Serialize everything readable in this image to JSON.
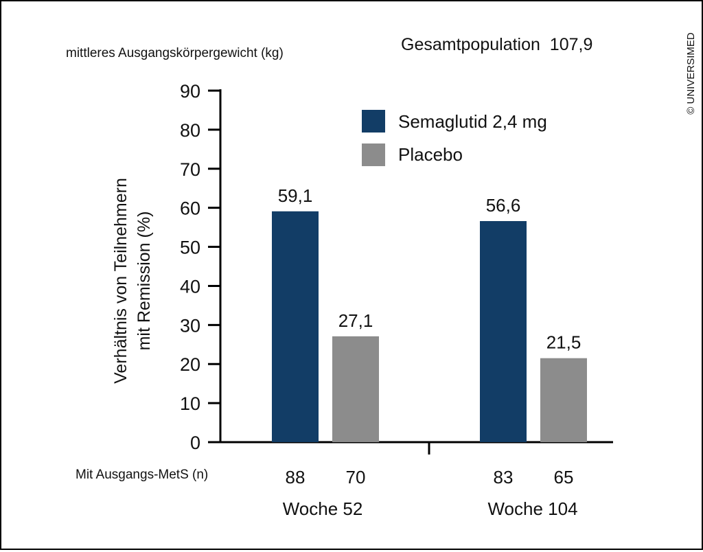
{
  "chart_data": {
    "type": "bar",
    "top_left_note": "mittleres Ausgangskörpergewicht (kg)",
    "population_note": "Gesamtpopulation  107,9",
    "copyright": "© UNIVERSIMED",
    "ylabel_line1": "Verhältnis von Teilnehmern",
    "ylabel_line2": "mit Remission (%)",
    "ylim": [
      0,
      90
    ],
    "yticks": [
      "0",
      "10",
      "20",
      "30",
      "40",
      "50",
      "60",
      "70",
      "80",
      "90"
    ],
    "n_row_label": "Mit Ausgangs-MetS (n)",
    "legend_position": "top-right",
    "grid": false,
    "categories": [
      "Woche 52",
      "Woche 104"
    ],
    "series": [
      {
        "name": "Semaglutid 2,4 mg",
        "color": "#123d66",
        "values": [
          59.1,
          56.6
        ],
        "labels": [
          "59,1",
          "56,6"
        ],
        "n": [
          "88",
          "83"
        ]
      },
      {
        "name": "Placebo",
        "color": "#8c8c8c",
        "values": [
          27.1,
          21.5
        ],
        "labels": [
          "27,1",
          "21,5"
        ],
        "n": [
          "70",
          "65"
        ]
      }
    ]
  }
}
